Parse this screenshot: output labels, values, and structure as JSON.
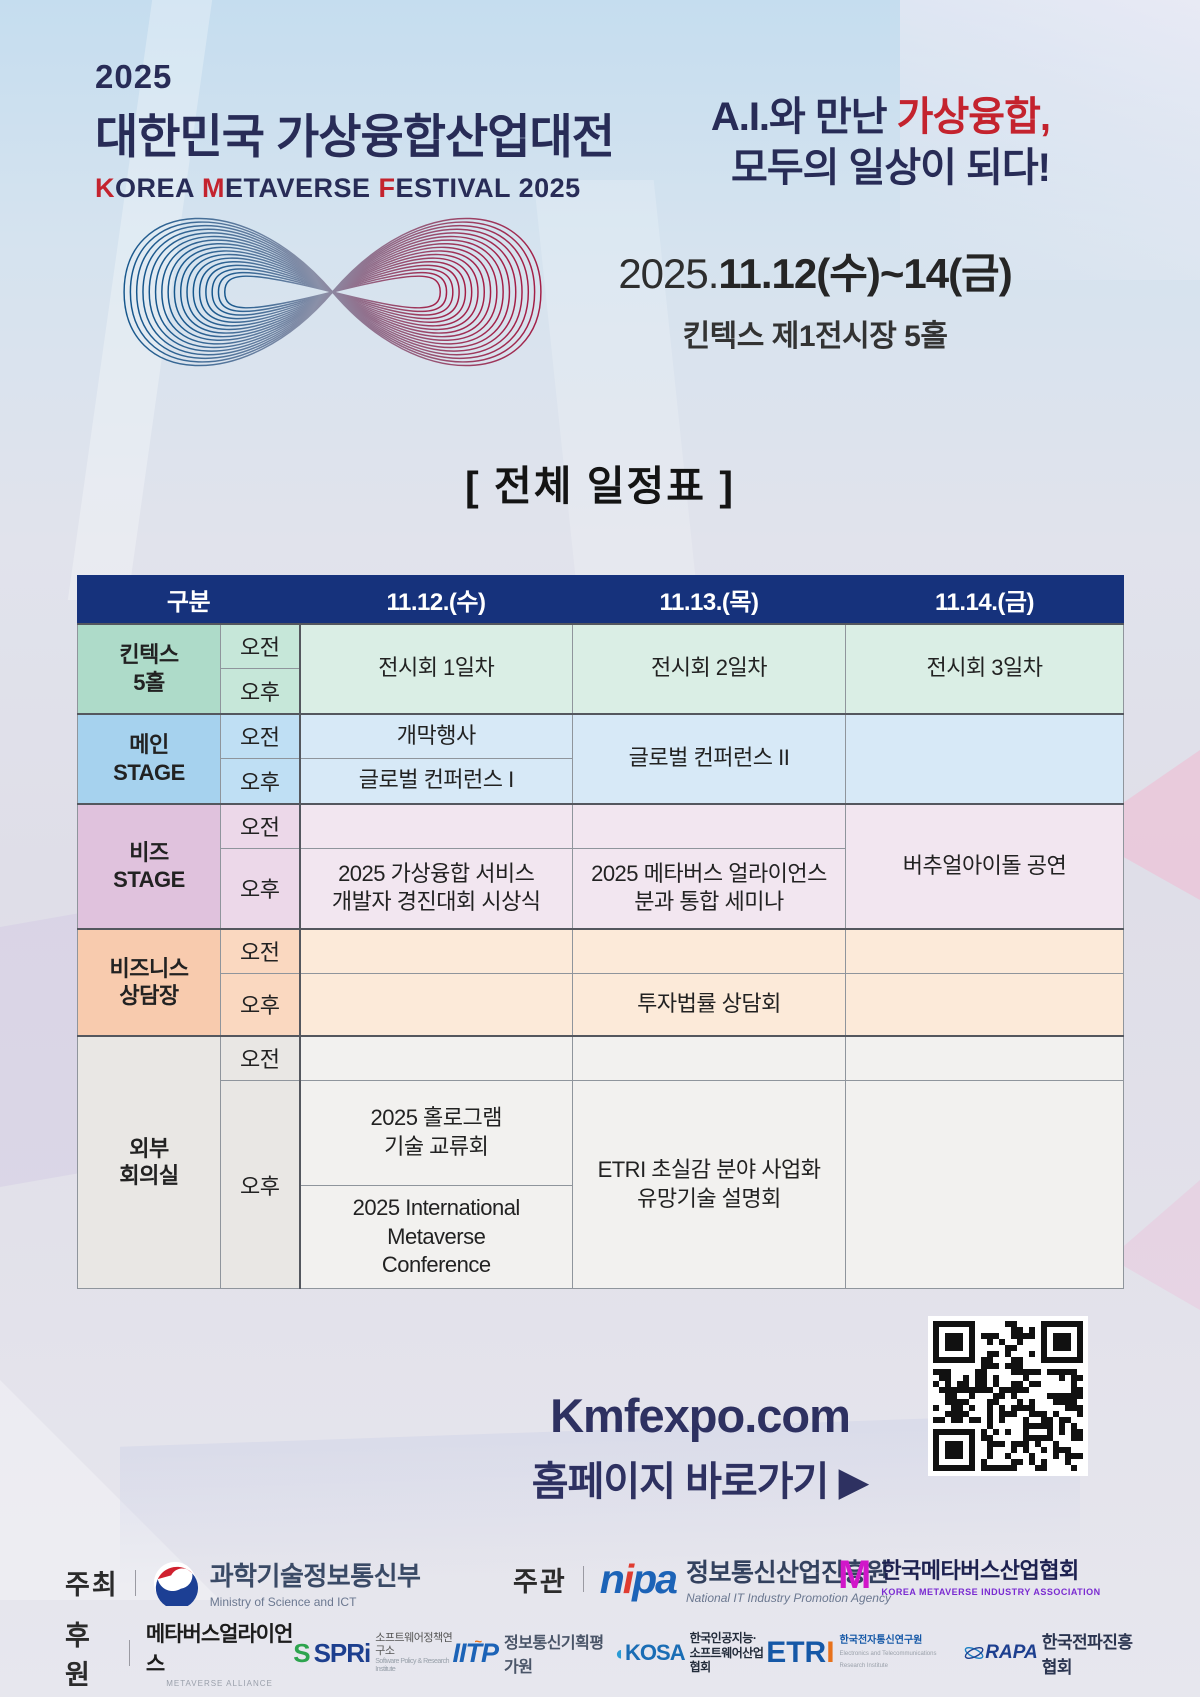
{
  "header": {
    "year": "2025",
    "title_ko": "대한민국 가상융합산업대전",
    "title_en": {
      "k": "K",
      "orea": "OREA ",
      "m": "M",
      "etaverse": "ETAVERSE ",
      "f": "F",
      "estival": "ESTIVAL 2025"
    },
    "slogan": {
      "line1_pre": "A.I.와 만난 ",
      "line1_red": "가상융합,",
      "line2": "모두의 일상이 되다!"
    },
    "date_prefix": "2025.",
    "date_bold": "11.12(수)~14(금)",
    "venue": "킨텍스 제1전시장 5홀"
  },
  "schedule": {
    "section_title": "[ 전체 일정표 ]",
    "columns": {
      "c0": "구분",
      "c1": "11.12.(수)",
      "c2": "11.13.(목)",
      "c3": "11.14.(금)"
    },
    "am_label": "오전",
    "pm_label": "오후",
    "kintex": {
      "venue": "킨텍스\n5홀",
      "d1": "전시회 1일차",
      "d2": "전시회 2일차",
      "d3": "전시회 3일차"
    },
    "main_stage": {
      "venue": "메인\nSTAGE",
      "am_d1": "개막행사",
      "pm_d1": "글로벌 컨퍼런스 I",
      "d2": "글로벌 컨퍼런스 II"
    },
    "biz_stage": {
      "venue": "비즈\nSTAGE",
      "pm_d1": "2025 가상융합 서비스\n개발자 경진대회 시상식",
      "pm_d2": "2025 메타버스 얼라이언스\n분과 통합 세미나",
      "d3": "버추얼아이돌 공연"
    },
    "business": {
      "venue": "비즈니스\n상담장",
      "pm_d2": "투자법률 상담회"
    },
    "external": {
      "venue": "외부\n회의실",
      "pm_d1a": "2025 홀로그램\n기술 교류회",
      "pm_d1b": "2025 International\nMetaverse\nConference",
      "pm_d2": "ETRI 초실감 분야 사업화\n유망기술 설명회"
    }
  },
  "website": {
    "url": "Kmfexpo.com",
    "cta": "홈페이지 바로가기",
    "arrow": "▶"
  },
  "footer": {
    "host_label": "주최",
    "host_name": "과학기술정보통신부",
    "host_sub": "Ministry of Science and ICT",
    "organizer_label": "주관",
    "nipa_logo_n": "n",
    "nipa_logo_i": "i",
    "nipa_logo_pa": "pa",
    "nipa_name": "정보통신산업진흥원",
    "nipa_sub": "National IT Industry Promotion Agency",
    "kmia_logo": "M",
    "kmia_name": "한국메타버스산업협회",
    "kmia_sub": "KOREA METAVERSE INDUSTRY ASSOCIATION",
    "sponsor_label": "후원",
    "alliance_name": "메타버스얼라이언스",
    "alliance_sub": "METAVERSE ALLIANCE",
    "spri_s": "S",
    "spri_logo": "SPRi",
    "spri_name": "소프트웨어정책연구소",
    "spri_sub": "Software Policy & Research Institute",
    "iitp_logo": "IITP",
    "iitp_name": "정보통신기획평가원",
    "kosa_moon": "◖",
    "kosa_logo": "KOSA",
    "kosa_name": "한국인공지능·\n소프트웨어산업협회",
    "etri_blue": "ETR",
    "etri_orange": "I",
    "etri_name": "한국전자통신연구원",
    "etri_sub": "Electronics and Telecommunications Research Institute",
    "rapa_logo": "RAPA",
    "rapa_name": "한국전파진흥협회"
  },
  "colors": {
    "navy_title": "#282c57",
    "accent_red": "#c4232e",
    "table_header_navy": "#16327c",
    "web_navy": "#2e3161"
  }
}
